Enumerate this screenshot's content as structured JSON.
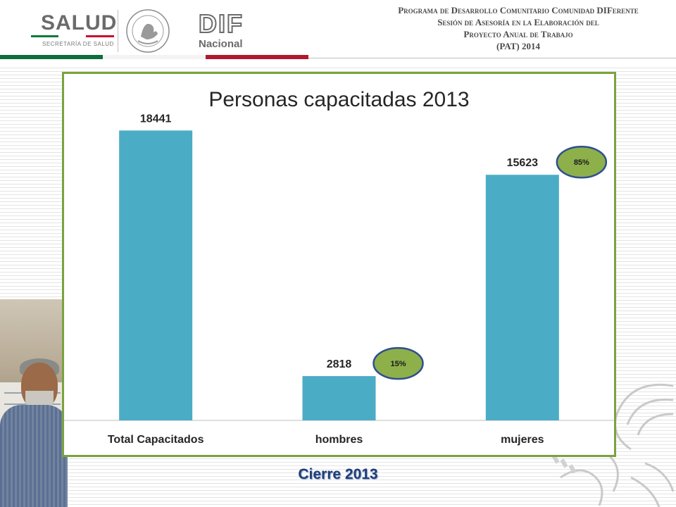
{
  "header": {
    "salud_logo": "SALUD",
    "salud_subtitle": "SECRETARÍA DE SALUD",
    "dif_logo": "DIF",
    "dif_subtitle": "Nacional",
    "title_lines": [
      "Programa de Desarrollo Comunitario Comunidad DIFerente",
      "Sesión de Asesoría en la Elaboración del",
      "Proyecto Anual de Trabajo",
      "(PAT) 2014"
    ]
  },
  "chart_data": {
    "type": "bar",
    "title": "Personas capacitadas 2013",
    "categories": [
      "Total Capacitados",
      "hombres",
      "mujeres"
    ],
    "values": [
      18441,
      2818,
      15623
    ],
    "data_labels": [
      "18441",
      "2818",
      "15623"
    ],
    "ylim": [
      0,
      19800
    ],
    "grid": false,
    "legend": "none",
    "bar_color": "#4bacc6",
    "annotations": [
      {
        "category": "hombres",
        "text": "15%"
      },
      {
        "category": "mujeres",
        "text": "85%"
      }
    ],
    "annotation_fill": "#8db04b",
    "annotation_stroke": "#2f4f8f"
  },
  "caption": "Cierre 2013",
  "colors": {
    "frame_border": "#7aa33f",
    "caption_text": "#1f3d78"
  }
}
